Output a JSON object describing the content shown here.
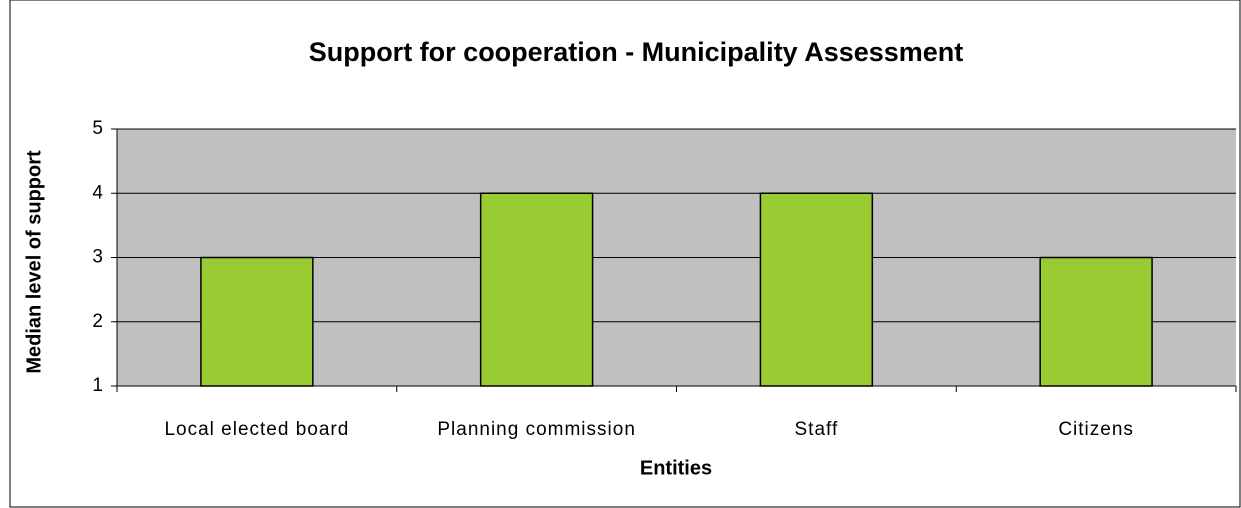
{
  "chart_data": {
    "type": "bar",
    "title": "Support for cooperation - Municipality Assessment",
    "x_label": "Entities",
    "y_label": "Median level of support",
    "categories": [
      "Local elected board",
      "Planning commission",
      "Staff",
      "Citizens"
    ],
    "values": [
      3,
      4,
      4,
      3
    ],
    "color": "#99cc33",
    "ylim": [
      1,
      5
    ],
    "yticks": [
      1,
      2,
      3,
      4,
      5
    ],
    "grid": true
  }
}
